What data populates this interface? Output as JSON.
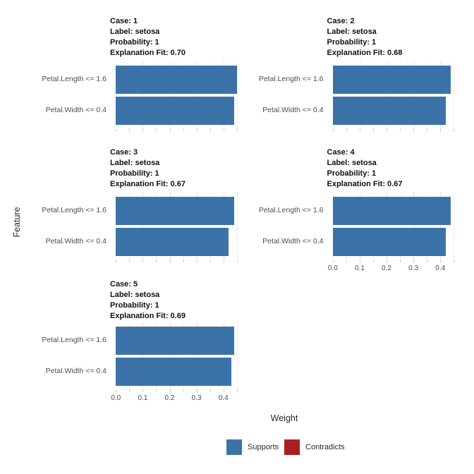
{
  "chart_data": {
    "type": "bar",
    "orientation": "horizontal",
    "xlabel": "Weight",
    "ylabel": "Feature",
    "x_ticks": [
      "0.0",
      "0.1",
      "0.2",
      "0.3",
      "0.4"
    ],
    "xlim": [
      0,
      0.46
    ],
    "x_minor_step": 0.05,
    "grid": true,
    "legend_position": "bottom",
    "features": [
      "Petal.Length <= 1.6",
      "Petal.Width <= 0.4"
    ],
    "colors": {
      "supports": "#3B73A8",
      "contradicts": "#A91E23"
    },
    "legend": [
      {
        "label": "Supports",
        "color": "#3B73A8"
      },
      {
        "label": "Contradicts",
        "color": "#A91E23"
      }
    ],
    "facets": [
      {
        "case": 1,
        "label": "setosa",
        "probability": 1,
        "explanation_fit": "0.70",
        "header": {
          "case": "Case: 1",
          "label": "Label: setosa",
          "probability": "Probability: 1",
          "fit": "Explanation Fit: 0.70"
        },
        "bars": [
          {
            "feature": "Petal.Length <= 1.6",
            "weight": 0.45,
            "direction": "Supports"
          },
          {
            "feature": "Petal.Width <= 0.4",
            "weight": 0.44,
            "direction": "Supports"
          }
        ],
        "show_x_labels": false
      },
      {
        "case": 2,
        "label": "setosa",
        "probability": 1,
        "explanation_fit": "0.68",
        "header": {
          "case": "Case: 2",
          "label": "Label: setosa",
          "probability": "Probability: 1",
          "fit": "Explanation Fit: 0.68"
        },
        "bars": [
          {
            "feature": "Petal.Length <= 1.6",
            "weight": 0.44,
            "direction": "Supports"
          },
          {
            "feature": "Petal.Width <= 0.4",
            "weight": 0.42,
            "direction": "Supports"
          }
        ],
        "show_x_labels": false
      },
      {
        "case": 3,
        "label": "setosa",
        "probability": 1,
        "explanation_fit": "0.67",
        "header": {
          "case": "Case: 3",
          "label": "Label: setosa",
          "probability": "Probability: 1",
          "fit": "Explanation Fit: 0.67"
        },
        "bars": [
          {
            "feature": "Petal.Length <= 1.6",
            "weight": 0.44,
            "direction": "Supports"
          },
          {
            "feature": "Petal.Width <= 0.4",
            "weight": 0.42,
            "direction": "Supports"
          }
        ],
        "show_x_labels": false
      },
      {
        "case": 4,
        "label": "setosa",
        "probability": 1,
        "explanation_fit": "0.67",
        "header": {
          "case": "Case: 4",
          "label": "Label: setosa",
          "probability": "Probability: 1",
          "fit": "Explanation Fit: 0.67"
        },
        "bars": [
          {
            "feature": "Petal.Length <= 1.6",
            "weight": 0.44,
            "direction": "Supports"
          },
          {
            "feature": "Petal.Width <= 0.4",
            "weight": 0.42,
            "direction": "Supports"
          }
        ],
        "show_x_labels": true
      },
      {
        "case": 5,
        "label": "setosa",
        "probability": 1,
        "explanation_fit": "0.69",
        "header": {
          "case": "Case: 5",
          "label": "Label: setosa",
          "probability": "Probability: 1",
          "fit": "Explanation Fit: 0.69"
        },
        "bars": [
          {
            "feature": "Petal.Length <= 1.6",
            "weight": 0.44,
            "direction": "Supports"
          },
          {
            "feature": "Petal.Width <= 0.4",
            "weight": 0.43,
            "direction": "Supports"
          }
        ],
        "show_x_labels": true
      }
    ]
  }
}
